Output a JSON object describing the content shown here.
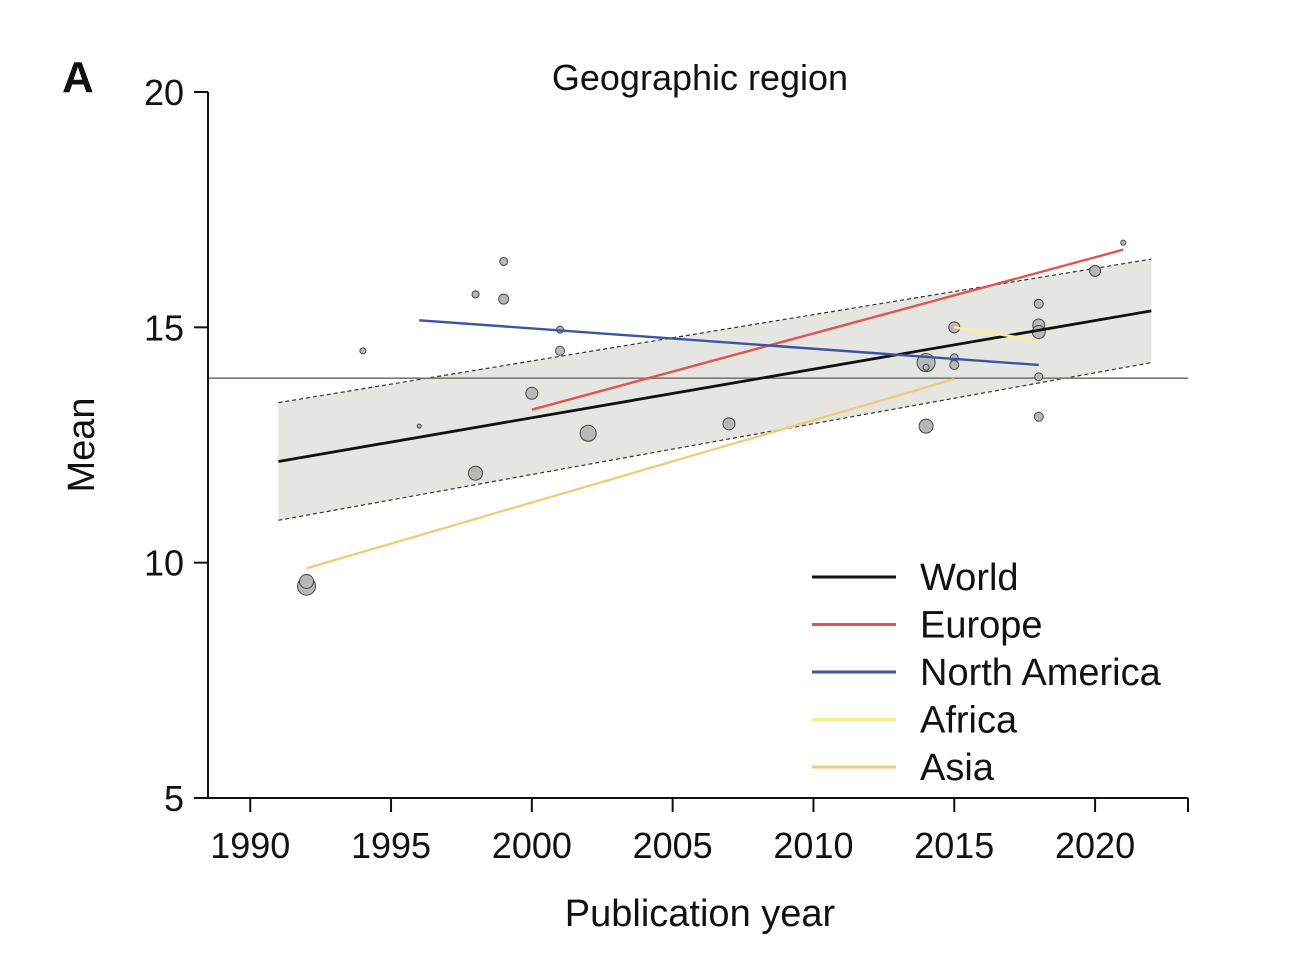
{
  "chart_data": {
    "type": "scatter",
    "panel_label": "A",
    "title": "Geographic region",
    "xlabel": "Publication year",
    "ylabel": "Mean",
    "xlim": [
      1988.5,
      2023.3
    ],
    "ylim": [
      5,
      20
    ],
    "x_ticks": [
      1990,
      1995,
      2000,
      2005,
      2010,
      2015,
      2020
    ],
    "y_ticks": [
      5,
      10,
      15,
      20
    ],
    "grid": false,
    "legend_position": "bottom-right",
    "reference_line": {
      "y": 13.92,
      "color": "#7a7a7a"
    },
    "confidence_band": {
      "x": [
        1991,
        2022
      ],
      "upper": [
        13.4,
        16.45
      ],
      "lower": [
        10.9,
        14.25
      ],
      "fill": "#e5e5e2",
      "edge_color": "#333333"
    },
    "series": [
      {
        "name": "World",
        "color": "#111111",
        "x": [
          1991,
          2022
        ],
        "y": [
          12.15,
          15.35
        ]
      },
      {
        "name": "Europe",
        "color": "#e0554d",
        "x": [
          2000,
          2021
        ],
        "y": [
          13.25,
          16.65
        ]
      },
      {
        "name": "North America",
        "color": "#3b56a1",
        "x": [
          1996,
          2018
        ],
        "y": [
          15.15,
          14.2
        ]
      },
      {
        "name": "Africa",
        "color": "#f6ef93",
        "x": [
          2015,
          2018
        ],
        "y": [
          15.0,
          14.72
        ]
      },
      {
        "name": "Asia",
        "color": "#f0cc7e",
        "x": [
          1992,
          2015
        ],
        "y": [
          9.88,
          13.9
        ]
      }
    ],
    "points": [
      {
        "x": 1992,
        "y": 9.5,
        "size": 9
      },
      {
        "x": 1992,
        "y": 9.6,
        "size": 7
      },
      {
        "x": 1994,
        "y": 14.5,
        "size": 3
      },
      {
        "x": 1996,
        "y": 12.9,
        "size": 2
      },
      {
        "x": 1998,
        "y": 15.7,
        "size": 3.5
      },
      {
        "x": 1998,
        "y": 11.9,
        "size": 7
      },
      {
        "x": 1999,
        "y": 16.4,
        "size": 4
      },
      {
        "x": 1999,
        "y": 15.6,
        "size": 5
      },
      {
        "x": 2000,
        "y": 13.6,
        "size": 6
      },
      {
        "x": 2001,
        "y": 14.95,
        "size": 3.5
      },
      {
        "x": 2001,
        "y": 14.5,
        "size": 4.5
      },
      {
        "x": 2002,
        "y": 12.75,
        "size": 8
      },
      {
        "x": 2007,
        "y": 12.95,
        "size": 6
      },
      {
        "x": 2014,
        "y": 14.25,
        "size": 9
      },
      {
        "x": 2014,
        "y": 14.15,
        "size": 3
      },
      {
        "x": 2014,
        "y": 12.9,
        "size": 7
      },
      {
        "x": 2015,
        "y": 15.0,
        "size": 5.5
      },
      {
        "x": 2015,
        "y": 14.35,
        "size": 4
      },
      {
        "x": 2015,
        "y": 14.2,
        "size": 4.5
      },
      {
        "x": 2018,
        "y": 15.5,
        "size": 4.5
      },
      {
        "x": 2018,
        "y": 15.05,
        "size": 6
      },
      {
        "x": 2018,
        "y": 14.9,
        "size": 6.5
      },
      {
        "x": 2018,
        "y": 13.95,
        "size": 4
      },
      {
        "x": 2018,
        "y": 13.1,
        "size": 4.5
      },
      {
        "x": 2020,
        "y": 16.2,
        "size": 5.5
      },
      {
        "x": 2021,
        "y": 16.8,
        "size": 2.5
      }
    ]
  }
}
